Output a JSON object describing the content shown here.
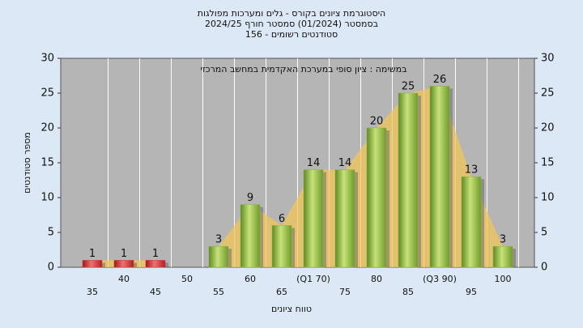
{
  "chart_data": {
    "type": "bar",
    "title": "היסטוגרמת ציונים בקורס - גלים ומערכות מפולגות",
    "subtitle": "בסמסטר  (01/2024)  סמסטר חורף 2024/25",
    "subtitle2": "סטודנטים רשומים - 156",
    "annotation": "במשימה : ציון סופי במערכת האקדמית במחשב המרכזי",
    "xlabel": "טווח ציונים",
    "ylabel": "מספר סטודנטים",
    "categories": [
      "35",
      "40",
      "45",
      "50",
      "55",
      "60",
      "65",
      "(Q1 70)",
      "75",
      "80",
      "85",
      "(Q3 90)",
      "95",
      "100"
    ],
    "values": [
      1,
      1,
      1,
      null,
      3,
      9,
      6,
      14,
      14,
      20,
      25,
      26,
      13,
      3
    ],
    "colors": [
      "#d43a3a",
      "#d43a3a",
      "#d43a3a",
      "#8db444",
      "#8db444",
      "#8db444",
      "#8db444",
      "#8db444",
      "#8db444",
      "#8db444",
      "#8db444",
      "#8db444",
      "#8db444",
      "#8db444"
    ],
    "area_color": "#f2c75a",
    "ylim": [
      0,
      30
    ],
    "yticks": [
      0,
      5,
      10,
      15,
      20,
      25,
      30
    ],
    "y2lim": [
      0,
      30
    ],
    "y2ticks": [
      0,
      5,
      10,
      15,
      20,
      25,
      30
    ],
    "grid": true
  }
}
